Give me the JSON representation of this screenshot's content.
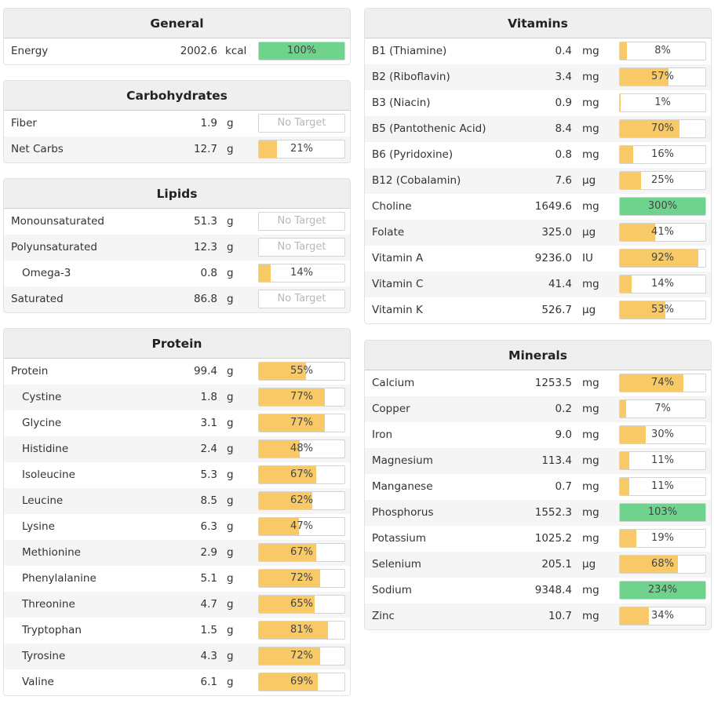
{
  "colors": {
    "accent_fill": "#f8c967",
    "over_fill": "#6fd38e"
  },
  "panels": {
    "general": {
      "title": "General",
      "rows": [
        {
          "name": "Energy",
          "amount": "2002.6",
          "unit": "kcal",
          "pct": "100%",
          "frac": 1.0,
          "over": true
        }
      ]
    },
    "carbs": {
      "title": "Carbohydrates",
      "rows": [
        {
          "name": "Fiber",
          "amount": "1.9",
          "unit": "g",
          "pct": "No Target",
          "frac": 0,
          "none": true
        },
        {
          "name": "Net Carbs",
          "amount": "12.7",
          "unit": "g",
          "pct": "21%",
          "frac": 0.21
        }
      ]
    },
    "lipids": {
      "title": "Lipids",
      "rows": [
        {
          "name": "Monounsaturated",
          "amount": "51.3",
          "unit": "g",
          "pct": "No Target",
          "frac": 0,
          "none": true
        },
        {
          "name": "Polyunsaturated",
          "amount": "12.3",
          "unit": "g",
          "pct": "No Target",
          "frac": 0,
          "none": true
        },
        {
          "name": "Omega-3",
          "amount": "0.8",
          "unit": "g",
          "pct": "14%",
          "frac": 0.14,
          "indent": true
        },
        {
          "name": "Saturated",
          "amount": "86.8",
          "unit": "g",
          "pct": "No Target",
          "frac": 0,
          "none": true
        }
      ]
    },
    "protein": {
      "title": "Protein",
      "rows": [
        {
          "name": "Protein",
          "amount": "99.4",
          "unit": "g",
          "pct": "55%",
          "frac": 0.55
        },
        {
          "name": "Cystine",
          "amount": "1.8",
          "unit": "g",
          "pct": "77%",
          "frac": 0.77,
          "indent": true
        },
        {
          "name": "Glycine",
          "amount": "3.1",
          "unit": "g",
          "pct": "77%",
          "frac": 0.77,
          "indent": true
        },
        {
          "name": "Histidine",
          "amount": "2.4",
          "unit": "g",
          "pct": "48%",
          "frac": 0.48,
          "indent": true
        },
        {
          "name": "Isoleucine",
          "amount": "5.3",
          "unit": "g",
          "pct": "67%",
          "frac": 0.67,
          "indent": true
        },
        {
          "name": "Leucine",
          "amount": "8.5",
          "unit": "g",
          "pct": "62%",
          "frac": 0.62,
          "indent": true
        },
        {
          "name": "Lysine",
          "amount": "6.3",
          "unit": "g",
          "pct": "47%",
          "frac": 0.47,
          "indent": true
        },
        {
          "name": "Methionine",
          "amount": "2.9",
          "unit": "g",
          "pct": "67%",
          "frac": 0.67,
          "indent": true
        },
        {
          "name": "Phenylalanine",
          "amount": "5.1",
          "unit": "g",
          "pct": "72%",
          "frac": 0.72,
          "indent": true
        },
        {
          "name": "Threonine",
          "amount": "4.7",
          "unit": "g",
          "pct": "65%",
          "frac": 0.65,
          "indent": true
        },
        {
          "name": "Tryptophan",
          "amount": "1.5",
          "unit": "g",
          "pct": "81%",
          "frac": 0.81,
          "indent": true
        },
        {
          "name": "Tyrosine",
          "amount": "4.3",
          "unit": "g",
          "pct": "72%",
          "frac": 0.72,
          "indent": true
        },
        {
          "name": "Valine",
          "amount": "6.1",
          "unit": "g",
          "pct": "69%",
          "frac": 0.69,
          "indent": true
        }
      ]
    },
    "vitamins": {
      "title": "Vitamins",
      "rows": [
        {
          "name": "B1 (Thiamine)",
          "amount": "0.4",
          "unit": "mg",
          "pct": "8%",
          "frac": 0.08
        },
        {
          "name": "B2 (Riboflavin)",
          "amount": "3.4",
          "unit": "mg",
          "pct": "57%",
          "frac": 0.57
        },
        {
          "name": "B3 (Niacin)",
          "amount": "0.9",
          "unit": "mg",
          "pct": "1%",
          "frac": 0.01
        },
        {
          "name": "B5 (Pantothenic Acid)",
          "amount": "8.4",
          "unit": "mg",
          "pct": "70%",
          "frac": 0.7
        },
        {
          "name": "B6 (Pyridoxine)",
          "amount": "0.8",
          "unit": "mg",
          "pct": "16%",
          "frac": 0.16
        },
        {
          "name": "B12 (Cobalamin)",
          "amount": "7.6",
          "unit": "µg",
          "pct": "25%",
          "frac": 0.25
        },
        {
          "name": "Choline",
          "amount": "1649.6",
          "unit": "mg",
          "pct": "300%",
          "frac": 1.0,
          "over": true
        },
        {
          "name": "Folate",
          "amount": "325.0",
          "unit": "µg",
          "pct": "41%",
          "frac": 0.41
        },
        {
          "name": "Vitamin A",
          "amount": "9236.0",
          "unit": "IU",
          "pct": "92%",
          "frac": 0.92
        },
        {
          "name": "Vitamin C",
          "amount": "41.4",
          "unit": "mg",
          "pct": "14%",
          "frac": 0.14
        },
        {
          "name": "Vitamin K",
          "amount": "526.7",
          "unit": "µg",
          "pct": "53%",
          "frac": 0.53
        }
      ]
    },
    "minerals": {
      "title": "Minerals",
      "rows": [
        {
          "name": "Calcium",
          "amount": "1253.5",
          "unit": "mg",
          "pct": "74%",
          "frac": 0.74
        },
        {
          "name": "Copper",
          "amount": "0.2",
          "unit": "mg",
          "pct": "7%",
          "frac": 0.07
        },
        {
          "name": "Iron",
          "amount": "9.0",
          "unit": "mg",
          "pct": "30%",
          "frac": 0.3
        },
        {
          "name": "Magnesium",
          "amount": "113.4",
          "unit": "mg",
          "pct": "11%",
          "frac": 0.11
        },
        {
          "name": "Manganese",
          "amount": "0.7",
          "unit": "mg",
          "pct": "11%",
          "frac": 0.11
        },
        {
          "name": "Phosphorus",
          "amount": "1552.3",
          "unit": "mg",
          "pct": "103%",
          "frac": 1.0,
          "over": true
        },
        {
          "name": "Potassium",
          "amount": "1025.2",
          "unit": "mg",
          "pct": "19%",
          "frac": 0.19
        },
        {
          "name": "Selenium",
          "amount": "205.1",
          "unit": "µg",
          "pct": "68%",
          "frac": 0.68
        },
        {
          "name": "Sodium",
          "amount": "9348.4",
          "unit": "mg",
          "pct": "234%",
          "frac": 1.0,
          "over": true
        },
        {
          "name": "Zinc",
          "amount": "10.7",
          "unit": "mg",
          "pct": "34%",
          "frac": 0.34
        }
      ]
    }
  }
}
